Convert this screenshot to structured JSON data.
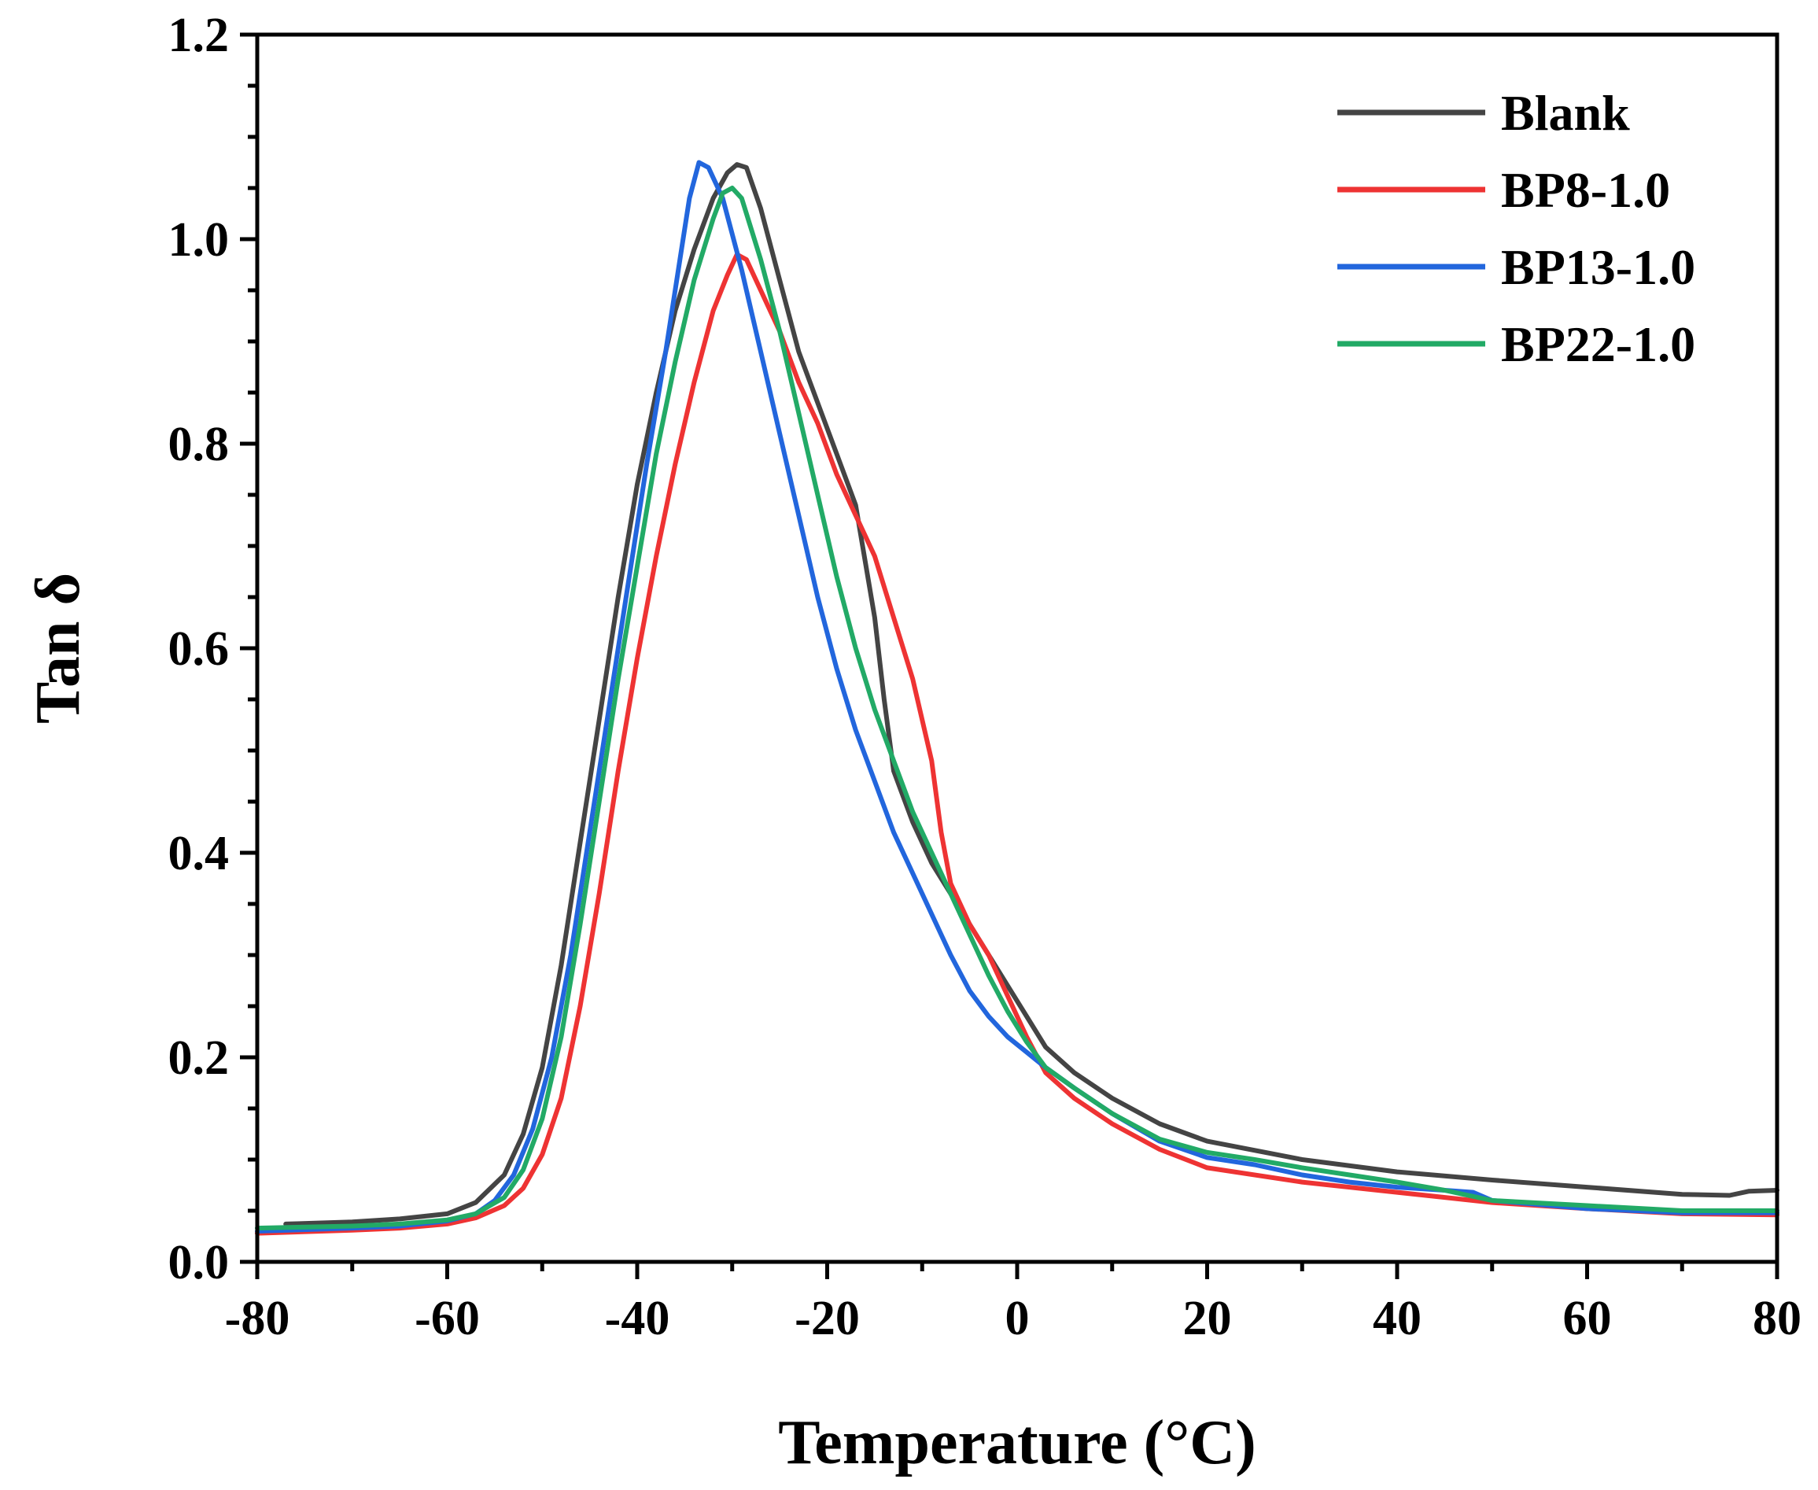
{
  "chart_data": {
    "type": "line",
    "title": "",
    "xlabel": "Temperature (°C)",
    "ylabel": "Tan δ",
    "xlim": [
      -80,
      80
    ],
    "ylim": [
      0.0,
      1.2
    ],
    "xticks": [
      -80,
      -60,
      -40,
      -20,
      0,
      20,
      40,
      60,
      80
    ],
    "xtick_labels": [
      "-80",
      "-60",
      "-40",
      "-20",
      "0",
      "20",
      "40",
      "60",
      "80"
    ],
    "yticks": [
      0.0,
      0.2,
      0.4,
      0.6,
      0.8,
      1.0,
      1.2
    ],
    "ytick_labels": [
      "0.0",
      "0.2",
      "0.4",
      "0.6",
      "0.8",
      "1.0",
      "1.2"
    ],
    "grid": false,
    "legend_position": "top-right",
    "series": [
      {
        "name": "Blank",
        "color": "#444444",
        "points": [
          [
            -77,
            0.037
          ],
          [
            -70,
            0.039
          ],
          [
            -65,
            0.042
          ],
          [
            -60,
            0.047
          ],
          [
            -57,
            0.058
          ],
          [
            -54,
            0.085
          ],
          [
            -52,
            0.125
          ],
          [
            -50,
            0.19
          ],
          [
            -48,
            0.29
          ],
          [
            -46,
            0.41
          ],
          [
            -44,
            0.53
          ],
          [
            -42,
            0.65
          ],
          [
            -40,
            0.76
          ],
          [
            -38,
            0.85
          ],
          [
            -36,
            0.93
          ],
          [
            -34,
            0.99
          ],
          [
            -32,
            1.04
          ],
          [
            -30.5,
            1.065
          ],
          [
            -29.5,
            1.073
          ],
          [
            -28.5,
            1.07
          ],
          [
            -27,
            1.03
          ],
          [
            -25,
            0.96
          ],
          [
            -23,
            0.89
          ],
          [
            -21,
            0.84
          ],
          [
            -19,
            0.79
          ],
          [
            -17,
            0.74
          ],
          [
            -15,
            0.63
          ],
          [
            -14,
            0.55
          ],
          [
            -13,
            0.48
          ],
          [
            -11,
            0.43
          ],
          [
            -9,
            0.39
          ],
          [
            -7,
            0.36
          ],
          [
            -5,
            0.33
          ],
          [
            -3,
            0.3
          ],
          [
            -1,
            0.27
          ],
          [
            1,
            0.24
          ],
          [
            3,
            0.21
          ],
          [
            6,
            0.185
          ],
          [
            10,
            0.16
          ],
          [
            15,
            0.135
          ],
          [
            20,
            0.118
          ],
          [
            30,
            0.1
          ],
          [
            40,
            0.088
          ],
          [
            50,
            0.08
          ],
          [
            60,
            0.073
          ],
          [
            70,
            0.066
          ],
          [
            75,
            0.065
          ],
          [
            77,
            0.069
          ],
          [
            80,
            0.07
          ]
        ]
      },
      {
        "name": "BP8-1.0",
        "color": "#ee3333",
        "points": [
          [
            -80,
            0.028
          ],
          [
            -70,
            0.031
          ],
          [
            -65,
            0.033
          ],
          [
            -60,
            0.037
          ],
          [
            -57,
            0.043
          ],
          [
            -54,
            0.055
          ],
          [
            -52,
            0.072
          ],
          [
            -50,
            0.105
          ],
          [
            -48,
            0.16
          ],
          [
            -46,
            0.25
          ],
          [
            -44,
            0.36
          ],
          [
            -42,
            0.48
          ],
          [
            -40,
            0.59
          ],
          [
            -38,
            0.69
          ],
          [
            -36,
            0.78
          ],
          [
            -34,
            0.86
          ],
          [
            -32,
            0.93
          ],
          [
            -30.5,
            0.965
          ],
          [
            -29.5,
            0.985
          ],
          [
            -28.5,
            0.98
          ],
          [
            -27,
            0.95
          ],
          [
            -25,
            0.91
          ],
          [
            -23,
            0.86
          ],
          [
            -21,
            0.82
          ],
          [
            -19,
            0.77
          ],
          [
            -17,
            0.73
          ],
          [
            -15,
            0.69
          ],
          [
            -13,
            0.63
          ],
          [
            -11,
            0.57
          ],
          [
            -9,
            0.49
          ],
          [
            -8,
            0.42
          ],
          [
            -7,
            0.37
          ],
          [
            -5,
            0.33
          ],
          [
            -3,
            0.3
          ],
          [
            -1,
            0.26
          ],
          [
            1,
            0.22
          ],
          [
            3,
            0.185
          ],
          [
            6,
            0.16
          ],
          [
            10,
            0.135
          ],
          [
            15,
            0.11
          ],
          [
            20,
            0.092
          ],
          [
            30,
            0.078
          ],
          [
            40,
            0.068
          ],
          [
            50,
            0.058
          ],
          [
            60,
            0.052
          ],
          [
            70,
            0.047
          ],
          [
            80,
            0.046
          ]
        ]
      },
      {
        "name": "BP13-1.0",
        "color": "#2266dd",
        "points": [
          [
            -80,
            0.03
          ],
          [
            -70,
            0.033
          ],
          [
            -65,
            0.035
          ],
          [
            -60,
            0.04
          ],
          [
            -57,
            0.047
          ],
          [
            -55,
            0.06
          ],
          [
            -53,
            0.085
          ],
          [
            -51,
            0.13
          ],
          [
            -49,
            0.2
          ],
          [
            -47,
            0.3
          ],
          [
            -45,
            0.42
          ],
          [
            -43,
            0.54
          ],
          [
            -41,
            0.66
          ],
          [
            -39,
            0.78
          ],
          [
            -37,
            0.89
          ],
          [
            -35.5,
            0.98
          ],
          [
            -34.5,
            1.04
          ],
          [
            -33.5,
            1.075
          ],
          [
            -32.5,
            1.07
          ],
          [
            -31,
            1.04
          ],
          [
            -29,
            0.97
          ],
          [
            -27,
            0.89
          ],
          [
            -25,
            0.81
          ],
          [
            -23,
            0.73
          ],
          [
            -21,
            0.65
          ],
          [
            -19,
            0.58
          ],
          [
            -17,
            0.52
          ],
          [
            -15,
            0.47
          ],
          [
            -13,
            0.42
          ],
          [
            -11,
            0.38
          ],
          [
            -9,
            0.34
          ],
          [
            -7,
            0.3
          ],
          [
            -5,
            0.265
          ],
          [
            -3,
            0.24
          ],
          [
            -1,
            0.22
          ],
          [
            1,
            0.205
          ],
          [
            3,
            0.19
          ],
          [
            6,
            0.17
          ],
          [
            10,
            0.145
          ],
          [
            15,
            0.118
          ],
          [
            20,
            0.102
          ],
          [
            25,
            0.095
          ],
          [
            30,
            0.085
          ],
          [
            35,
            0.078
          ],
          [
            40,
            0.073
          ],
          [
            45,
            0.07
          ],
          [
            48,
            0.068
          ],
          [
            50,
            0.06
          ],
          [
            60,
            0.052
          ],
          [
            70,
            0.048
          ],
          [
            80,
            0.048
          ]
        ]
      },
      {
        "name": "BP22-1.0",
        "color": "#22aa66",
        "points": [
          [
            -80,
            0.033
          ],
          [
            -70,
            0.035
          ],
          [
            -65,
            0.037
          ],
          [
            -60,
            0.041
          ],
          [
            -57,
            0.047
          ],
          [
            -54,
            0.063
          ],
          [
            -52,
            0.09
          ],
          [
            -50,
            0.14
          ],
          [
            -48,
            0.22
          ],
          [
            -46,
            0.33
          ],
          [
            -44,
            0.45
          ],
          [
            -42,
            0.57
          ],
          [
            -40,
            0.68
          ],
          [
            -38,
            0.79
          ],
          [
            -36,
            0.88
          ],
          [
            -34,
            0.96
          ],
          [
            -32,
            1.02
          ],
          [
            -31,
            1.045
          ],
          [
            -30,
            1.05
          ],
          [
            -29,
            1.04
          ],
          [
            -27,
            0.98
          ],
          [
            -25,
            0.91
          ],
          [
            -23,
            0.83
          ],
          [
            -21,
            0.75
          ],
          [
            -19,
            0.67
          ],
          [
            -17,
            0.6
          ],
          [
            -15,
            0.54
          ],
          [
            -13,
            0.49
          ],
          [
            -11,
            0.44
          ],
          [
            -9,
            0.4
          ],
          [
            -7,
            0.36
          ],
          [
            -5,
            0.32
          ],
          [
            -3,
            0.28
          ],
          [
            -1,
            0.245
          ],
          [
            1,
            0.215
          ],
          [
            3,
            0.19
          ],
          [
            6,
            0.17
          ],
          [
            10,
            0.145
          ],
          [
            15,
            0.12
          ],
          [
            20,
            0.107
          ],
          [
            25,
            0.1
          ],
          [
            30,
            0.092
          ],
          [
            35,
            0.085
          ],
          [
            40,
            0.078
          ],
          [
            45,
            0.07
          ],
          [
            50,
            0.06
          ],
          [
            60,
            0.055
          ],
          [
            70,
            0.05
          ],
          [
            80,
            0.05
          ]
        ]
      }
    ]
  }
}
